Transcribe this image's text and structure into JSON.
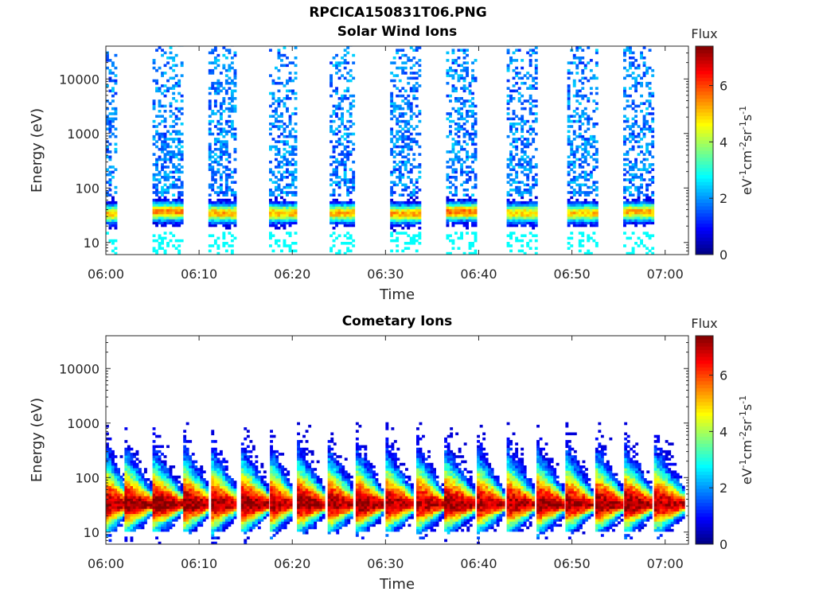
{
  "figure": {
    "title": "RPCICA150831T06.PNG"
  },
  "colorbar": {
    "label": "Flux",
    "ticks": [
      "0",
      "2",
      "4",
      "6"
    ],
    "range": [
      0,
      7.4
    ],
    "unit_parts": [
      "eV",
      "-1",
      "cm",
      "-2",
      "sr",
      "-1",
      "s",
      "-1"
    ]
  },
  "chart_data": [
    {
      "type": "heatmap",
      "title": "Solar Wind Ions",
      "xlabel": "Time",
      "ylabel": "Energy (eV)",
      "x_ticks": [
        "06:00",
        "06:10",
        "06:20",
        "06:30",
        "06:40",
        "06:50",
        "07:00"
      ],
      "x_range_minutes": [
        0,
        62.5
      ],
      "y_scale": "log",
      "y_ticks": [
        "10",
        "100",
        "1000",
        "10000"
      ],
      "y_range": [
        6,
        40000
      ],
      "colorscale": "jet",
      "bursts": [
        {
          "start_min": 0.0,
          "end_min": 1.2,
          "peak_energy_eV": 32,
          "peak_flux": 5.2
        },
        {
          "start_min": 5.0,
          "end_min": 8.0,
          "peak_energy_eV": 35,
          "peak_flux": 5.6
        },
        {
          "start_min": 11.0,
          "end_min": 14.0,
          "peak_energy_eV": 33,
          "peak_flux": 5.3
        },
        {
          "start_min": 17.5,
          "end_min": 20.5,
          "peak_energy_eV": 33,
          "peak_flux": 5.2
        },
        {
          "start_min": 24.0,
          "end_min": 26.5,
          "peak_energy_eV": 33,
          "peak_flux": 5.2
        },
        {
          "start_min": 30.5,
          "end_min": 33.5,
          "peak_energy_eV": 32,
          "peak_flux": 5.3
        },
        {
          "start_min": 36.5,
          "end_min": 39.5,
          "peak_energy_eV": 35,
          "peak_flux": 5.6
        },
        {
          "start_min": 43.0,
          "end_min": 46.0,
          "peak_energy_eV": 33,
          "peak_flux": 5.0
        },
        {
          "start_min": 49.5,
          "end_min": 52.5,
          "peak_energy_eV": 33,
          "peak_flux": 5.0
        },
        {
          "start_min": 55.5,
          "end_min": 58.5,
          "peak_energy_eV": 35,
          "peak_flux": 5.3
        }
      ]
    },
    {
      "type": "heatmap",
      "title": "Cometary Ions",
      "xlabel": "Time",
      "ylabel": "Energy (eV)",
      "x_ticks": [
        "06:00",
        "06:10",
        "06:20",
        "06:30",
        "06:40",
        "06:50",
        "07:00"
      ],
      "x_range_minutes": [
        0,
        62.5
      ],
      "y_scale": "log",
      "y_ticks": [
        "10",
        "100",
        "1000",
        "10000"
      ],
      "y_range": [
        6,
        40000
      ],
      "colorscale": "jet",
      "bursts": [
        {
          "start_min": 0.0,
          "end_min": 2.2,
          "peak_energy_eV": 30,
          "peak_flux": 7.0
        },
        {
          "start_min": 2.0,
          "end_min": 4.8,
          "peak_energy_eV": 30,
          "peak_flux": 7.2
        },
        {
          "start_min": 5.0,
          "end_min": 8.0,
          "peak_energy_eV": 30,
          "peak_flux": 7.2
        },
        {
          "start_min": 8.3,
          "end_min": 11.0,
          "peak_energy_eV": 30,
          "peak_flux": 7.2
        },
        {
          "start_min": 11.3,
          "end_min": 14.0,
          "peak_energy_eV": 30,
          "peak_flux": 7.0
        },
        {
          "start_min": 14.5,
          "end_min": 17.3,
          "peak_energy_eV": 30,
          "peak_flux": 7.2
        },
        {
          "start_min": 17.6,
          "end_min": 20.0,
          "peak_energy_eV": 30,
          "peak_flux": 7.0
        },
        {
          "start_min": 20.5,
          "end_min": 23.3,
          "peak_energy_eV": 30,
          "peak_flux": 7.2
        },
        {
          "start_min": 23.8,
          "end_min": 26.5,
          "peak_energy_eV": 30,
          "peak_flux": 7.0
        },
        {
          "start_min": 26.8,
          "end_min": 29.6,
          "peak_energy_eV": 30,
          "peak_flux": 7.2
        },
        {
          "start_min": 30.0,
          "end_min": 32.8,
          "peak_energy_eV": 30,
          "peak_flux": 7.0
        },
        {
          "start_min": 33.3,
          "end_min": 36.0,
          "peak_energy_eV": 30,
          "peak_flux": 7.0
        },
        {
          "start_min": 36.3,
          "end_min": 39.5,
          "peak_energy_eV": 30,
          "peak_flux": 7.2
        },
        {
          "start_min": 39.8,
          "end_min": 42.5,
          "peak_energy_eV": 30,
          "peak_flux": 7.0
        },
        {
          "start_min": 43.0,
          "end_min": 45.8,
          "peak_energy_eV": 30,
          "peak_flux": 7.0
        },
        {
          "start_min": 46.2,
          "end_min": 49.0,
          "peak_energy_eV": 30,
          "peak_flux": 7.2
        },
        {
          "start_min": 49.3,
          "end_min": 52.0,
          "peak_energy_eV": 30,
          "peak_flux": 7.0
        },
        {
          "start_min": 52.5,
          "end_min": 55.3,
          "peak_energy_eV": 30,
          "peak_flux": 7.2
        },
        {
          "start_min": 55.6,
          "end_min": 58.5,
          "peak_energy_eV": 30,
          "peak_flux": 7.2
        },
        {
          "start_min": 58.8,
          "end_min": 62.0,
          "peak_energy_eV": 30,
          "peak_flux": 7.0
        }
      ]
    }
  ]
}
